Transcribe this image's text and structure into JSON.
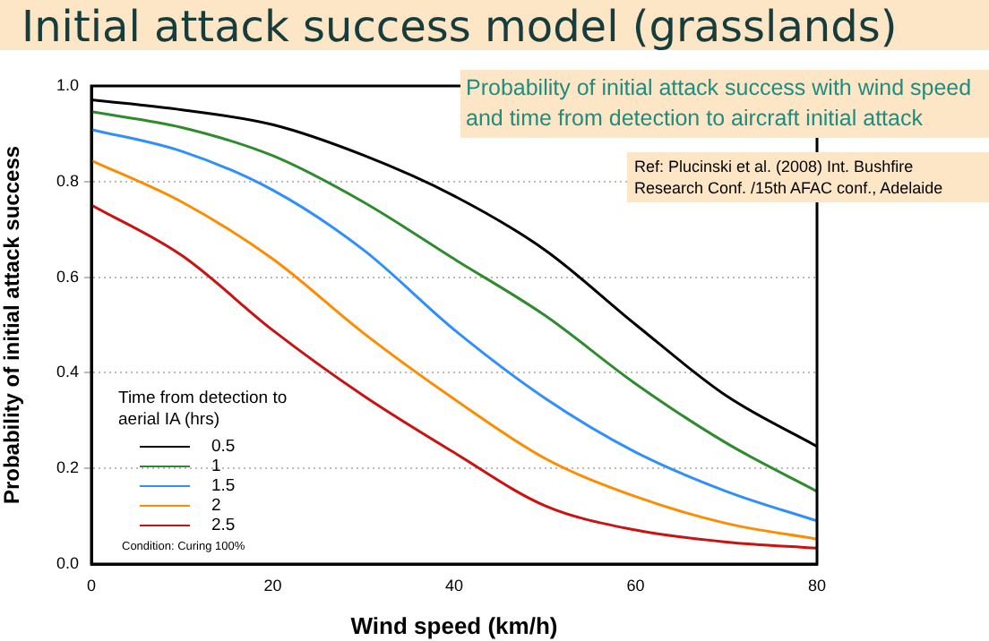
{
  "chart_data": {
    "type": "line",
    "title": "Initial attack success model (grasslands)",
    "subtitle": "Probability of initial attack success with wind speed and time from detection to aircraft initial attack",
    "xlabel": "Wind speed (km/h)",
    "ylabel": "Probability of initial attack success",
    "legend_title": "Time from detection to aerial IA (hrs)",
    "annotations": [
      "Ref: Plucinski et al. (2008) Int. Bushfire Research Conf. /15th AFAC conf., Adelaide",
      "Condition: Curing 100%"
    ],
    "x": [
      0,
      10,
      20,
      30,
      40,
      50,
      60,
      70,
      80
    ],
    "series": [
      {
        "name": "0.5",
        "color": "#000000",
        "values": [
          0.971,
          0.95,
          0.919,
          0.855,
          0.77,
          0.657,
          0.501,
          0.352,
          0.246
        ]
      },
      {
        "name": "1",
        "color": "#2e8b2e",
        "values": [
          0.946,
          0.913,
          0.854,
          0.757,
          0.638,
          0.52,
          0.377,
          0.253,
          0.152
        ]
      },
      {
        "name": "1.5",
        "color": "#2f8fff",
        "values": [
          0.909,
          0.863,
          0.782,
          0.657,
          0.49,
          0.347,
          0.234,
          0.152,
          0.09
        ]
      },
      {
        "name": "2",
        "color": "#ff8c00",
        "values": [
          0.844,
          0.757,
          0.638,
          0.483,
          0.345,
          0.221,
          0.141,
          0.085,
          0.052
        ]
      },
      {
        "name": "2.5",
        "color": "#cc1111",
        "values": [
          0.751,
          0.645,
          0.489,
          0.352,
          0.233,
          0.122,
          0.071,
          0.046,
          0.033
        ]
      }
    ],
    "xlim": [
      0,
      80
    ],
    "xticks": [
      0,
      20,
      40,
      60,
      80
    ],
    "ylim": [
      0,
      1
    ],
    "yticks": [
      {
        "value": 0,
        "label": "0.0"
      },
      {
        "value": 0.2,
        "label": "0.2"
      },
      {
        "value": 0.4,
        "label": "0.4"
      },
      {
        "value": 0.6,
        "label": "0.6"
      },
      {
        "value": 0.8,
        "label": "0.8"
      },
      {
        "value": 1,
        "label": "1.0"
      }
    ],
    "grid": "y",
    "legend": "bottom left",
    "marker": "none",
    "line_style": "solid"
  }
}
